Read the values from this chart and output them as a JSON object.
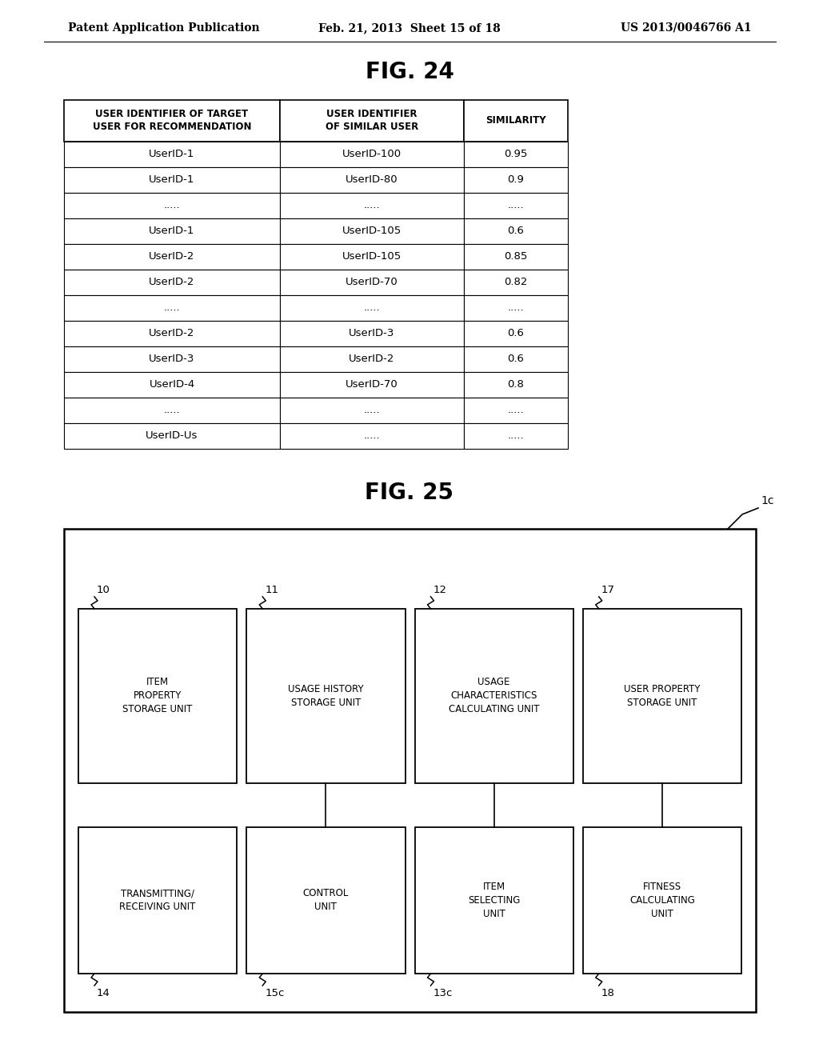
{
  "header_left": "Patent Application Publication",
  "header_mid": "Feb. 21, 2013  Sheet 15 of 18",
  "header_right": "US 2013/0046766 A1",
  "fig24_title": "FIG. 24",
  "fig25_title": "FIG. 25",
  "table_headers": [
    "USER IDENTIFIER OF TARGET\nUSER FOR RECOMMENDATION",
    "USER IDENTIFIER\nOF SIMILAR USER",
    "SIMILARITY"
  ],
  "table_rows": [
    [
      "UserID-1",
      "UserID-100",
      "0.95"
    ],
    [
      "UserID-1",
      "UserID-80",
      "0.9"
    ],
    [
      ".....",
      ".....",
      "....."
    ],
    [
      "UserID-1",
      "UserID-105",
      "0.6"
    ],
    [
      "UserID-2",
      "UserID-105",
      "0.85"
    ],
    [
      "UserID-2",
      "UserID-70",
      "0.82"
    ],
    [
      ".....",
      ".....",
      "....."
    ],
    [
      "UserID-2",
      "UserID-3",
      "0.6"
    ],
    [
      "UserID-3",
      "UserID-2",
      "0.6"
    ],
    [
      "UserID-4",
      "UserID-70",
      "0.8"
    ],
    [
      ".....",
      ".....",
      "....."
    ],
    [
      "UserID-Us",
      ".....",
      "....."
    ]
  ],
  "background_color": "#ffffff",
  "text_color": "#000000",
  "box_labels_top": [
    "ITEM\nPROPERTY\nSTORAGE UNIT",
    "USAGE HISTORY\nSTORAGE UNIT",
    "USAGE\nCHARACTERISTICS\nCALCULATING UNIT",
    "USER PROPERTY\nSTORAGE UNIT"
  ],
  "box_labels_bot": [
    "TRANSMITTING/\nRECEIVING UNIT",
    "CONTROL\nUNIT",
    "ITEM\nSELECTING\nUNIT",
    "FITNESS\nCALCULATING\nUNIT"
  ],
  "ref_labels_top": [
    "10",
    "11",
    "12",
    "17"
  ],
  "ref_labels_bot": [
    "14",
    "15c",
    "13c",
    "18"
  ],
  "outer_ref": "1c"
}
